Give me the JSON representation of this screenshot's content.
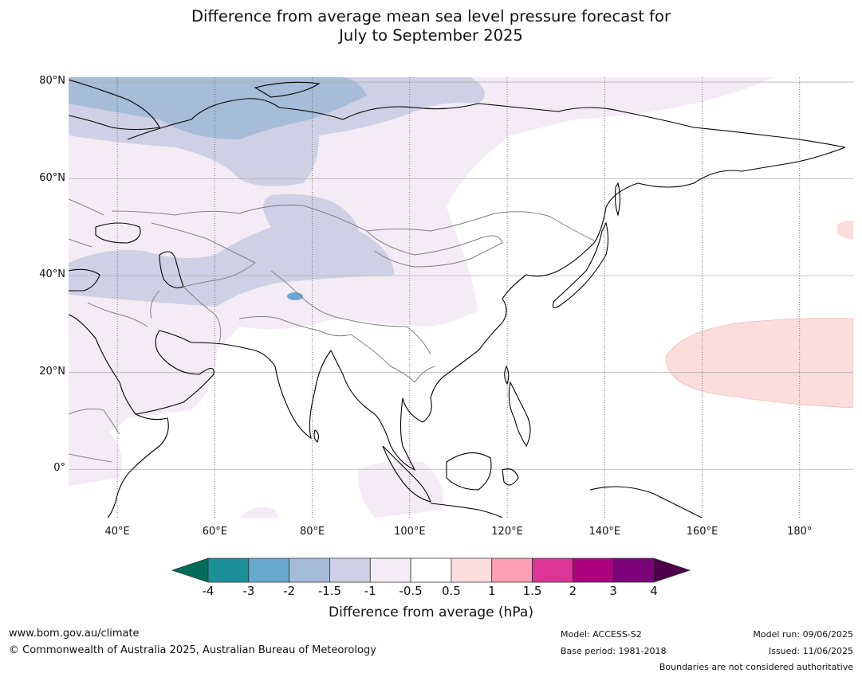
{
  "title": {
    "line1": "Difference from average mean sea level pressure forecast for",
    "line2": "July to September 2025"
  },
  "map": {
    "region": "Asia",
    "lon_range": [
      30,
      191
    ],
    "lat_range": [
      -10,
      81
    ],
    "lat_ticks": [
      {
        "value": 80,
        "label": "80°N"
      },
      {
        "value": 60,
        "label": "60°N"
      },
      {
        "value": 40,
        "label": "40°N"
      },
      {
        "value": 20,
        "label": "20°N"
      },
      {
        "value": 0,
        "label": "0°"
      }
    ],
    "lon_ticks": [
      {
        "value": 40,
        "label": "40°E"
      },
      {
        "value": 60,
        "label": "60°E"
      },
      {
        "value": 80,
        "label": "80°E"
      },
      {
        "value": 100,
        "label": "100°E"
      },
      {
        "value": 120,
        "label": "120°E"
      },
      {
        "value": 140,
        "label": "140°E"
      },
      {
        "value": 160,
        "label": "160°E"
      },
      {
        "value": 180,
        "label": "180°"
      }
    ],
    "gridlines": "lat solid grey, lon dotted",
    "colors": {
      "land_outline": "#000000",
      "borders": "#808080",
      "neg_1_5_to_neg_2": "#a6bcd8",
      "neg_1_to_neg_1_5": "#cfd0e5",
      "neg_0_5_to_neg_1": "#f3ecf5",
      "pos_0_5_to_1": "#fddcdc",
      "neg_3_to_neg_2": "#6aa9d1"
    }
  },
  "colorbar": {
    "labels": [
      "-4",
      "-3",
      "-2",
      "-1.5",
      "-1",
      "-0.5",
      "0.5",
      "1",
      "1.5",
      "2",
      "3",
      "4"
    ],
    "low_extend_color": "#016c59",
    "high_extend_color": "#4d004b",
    "colors": [
      "#1c9099",
      "#67a9cf",
      "#a6bcd8",
      "#cfd0e5",
      "#f3ecf5",
      "#ffffff",
      "#fddcdc",
      "#fa9fb5",
      "#dd3497",
      "#ae017e",
      "#7a0177"
    ],
    "title": "Difference from average (hPa)"
  },
  "footer": {
    "website": "www.bom.gov.au/climate",
    "copyright": "© Commonwealth of Australia 2025, Australian Bureau of Meteorology",
    "model": "Model: ACCESS-S2",
    "base_period": "Base period: 1981-2018",
    "model_run": "Model run: 09/06/2025",
    "issued": "Issued: 11/06/2025",
    "disclaimer": "Boundaries are not considered authoritative"
  }
}
